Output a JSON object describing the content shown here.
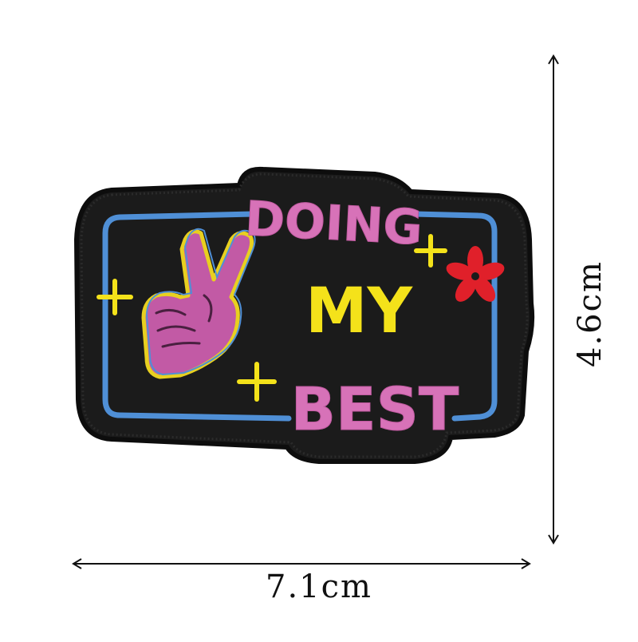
{
  "patch": {
    "line1": "DOING",
    "line2": "MY",
    "line3": "BEST"
  },
  "dimensions": {
    "width_label": "7.1cm",
    "height_label": "4.6cm"
  },
  "colors": {
    "patch_bg": "#1b1b1b",
    "border_blue": "#4f8fd6",
    "text_pink": "#d772b8",
    "text_yellow": "#f4e21a",
    "flower_red": "#e0202a",
    "outline_yellow": "#e8d020"
  },
  "icons": [
    "peace-hand-icon",
    "sparkle-icon",
    "flower-icon"
  ]
}
